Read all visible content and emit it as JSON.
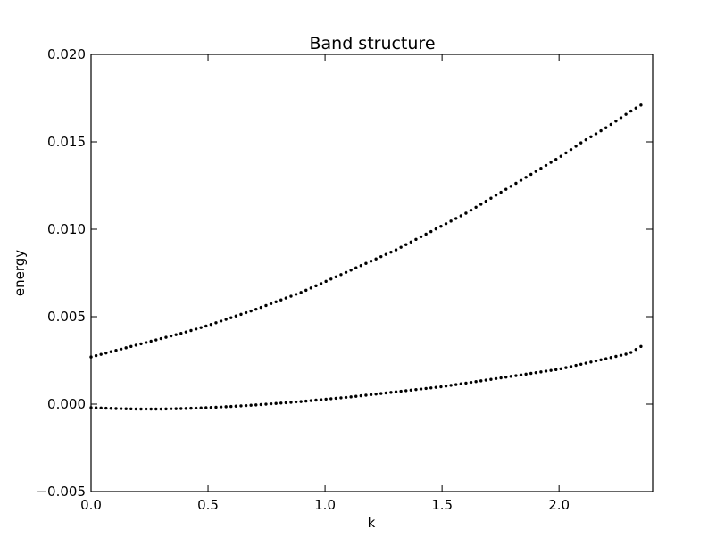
{
  "chart_data": {
    "type": "scatter",
    "title": "Band structure",
    "xlabel": "k",
    "ylabel": "energy",
    "xlim": [
      0.0,
      2.4
    ],
    "ylim": [
      -0.005,
      0.02
    ],
    "grid": false,
    "legend": "none",
    "marker_color": "#000000",
    "xticks": [
      0.0,
      0.5,
      1.0,
      1.5,
      2.0
    ],
    "xtick_labels": [
      "0.0",
      "0.5",
      "1.0",
      "1.5",
      "2.0"
    ],
    "yticks": [
      -0.005,
      0.0,
      0.005,
      0.01,
      0.015,
      0.02
    ],
    "ytick_labels": [
      "−0.005",
      "0.000",
      "0.005",
      "0.010",
      "0.015",
      "0.020"
    ],
    "series": [
      {
        "x": [
          0.0,
          0.1,
          0.2,
          0.3,
          0.4,
          0.5,
          0.6,
          0.7,
          0.8,
          0.9,
          1.0,
          1.1,
          1.2,
          1.3,
          1.4,
          1.5,
          1.6,
          1.7,
          1.8,
          1.9,
          2.0,
          2.1,
          2.2,
          2.3,
          2.35
        ],
        "y": [
          0.0027,
          0.00305,
          0.0034,
          0.00375,
          0.0041,
          0.0045,
          0.00495,
          0.0054,
          0.0059,
          0.0064,
          0.007,
          0.0076,
          0.0082,
          0.0088,
          0.0095,
          0.0102,
          0.0109,
          0.0117,
          0.0125,
          0.0133,
          0.0141,
          0.015,
          0.0158,
          0.0167,
          0.0171
        ]
      },
      {
        "x": [
          0.0,
          0.1,
          0.2,
          0.3,
          0.4,
          0.5,
          0.6,
          0.7,
          0.8,
          0.9,
          1.0,
          1.1,
          1.2,
          1.3,
          1.4,
          1.5,
          1.6,
          1.7,
          1.8,
          1.9,
          2.0,
          2.1,
          2.2,
          2.3,
          2.35
        ],
        "y": [
          -0.0002,
          -0.00025,
          -0.00028,
          -0.00028,
          -0.00025,
          -0.0002,
          -0.00013,
          -5e-05,
          5e-05,
          0.00015,
          0.00028,
          0.0004,
          0.00055,
          0.0007,
          0.00085,
          0.001,
          0.0012,
          0.0014,
          0.0016,
          0.0018,
          0.002,
          0.0023,
          0.0026,
          0.0029,
          0.0033
        ]
      }
    ]
  }
}
